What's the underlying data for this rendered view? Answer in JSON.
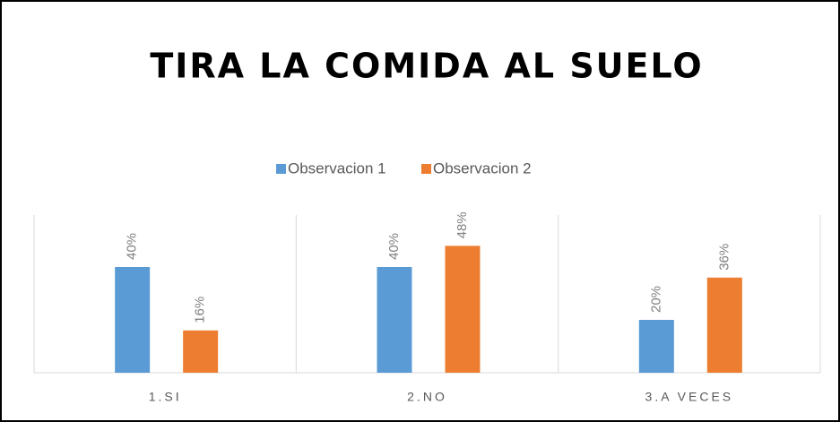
{
  "chart_data": {
    "type": "bar",
    "title": "TIRA LA COMIDA AL SUELO",
    "categories": [
      "1.SI",
      "2.NO",
      "3.A VECES"
    ],
    "series": [
      {
        "name": "Observacion 1",
        "color": "#5b9bd5",
        "values": [
          40,
          40,
          20
        ],
        "value_labels": [
          "40%",
          "40%",
          "20%"
        ]
      },
      {
        "name": "Observacion 2",
        "color": "#ed7d31",
        "values": [
          16,
          48,
          36
        ],
        "value_labels": [
          "16%",
          "48%",
          "36%"
        ]
      }
    ],
    "legend": "top"
  }
}
